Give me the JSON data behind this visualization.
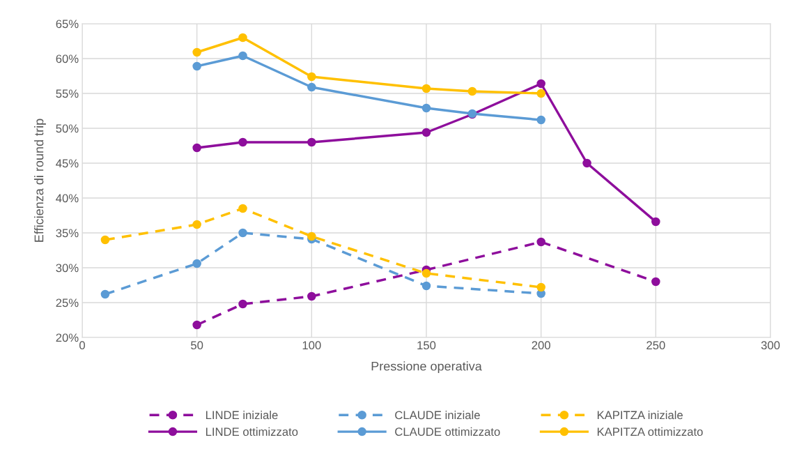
{
  "chart_data": {
    "type": "line",
    "xlabel": "Pressione operativa",
    "ylabel": "Efficienza di round trip",
    "xlim": [
      0,
      300
    ],
    "xticks": [
      0,
      50,
      100,
      150,
      200,
      250,
      300
    ],
    "ylim": [
      20,
      65
    ],
    "yticks": [
      {
        "value": 20,
        "label": "20%"
      },
      {
        "value": 25,
        "label": "25%"
      },
      {
        "value": 30,
        "label": "30%"
      },
      {
        "value": 35,
        "label": "35%"
      },
      {
        "value": 40,
        "label": "40%"
      },
      {
        "value": 45,
        "label": "45%"
      },
      {
        "value": 50,
        "label": "50%"
      },
      {
        "value": 55,
        "label": "55%"
      },
      {
        "value": 60,
        "label": "60%"
      },
      {
        "value": 65,
        "label": "65%"
      }
    ],
    "grid": true,
    "legend": "bottom",
    "marker": "circle",
    "series": [
      {
        "name": "LINDE iniziale",
        "color": "#8e0e9c",
        "line_style": "dashed",
        "x": [
          50,
          70,
          100,
          150,
          200,
          250
        ],
        "values": [
          21.8,
          24.8,
          25.9,
          29.7,
          33.7,
          28.0
        ]
      },
      {
        "name": "CLAUDE iniziale",
        "color": "#5b9bd5",
        "line_style": "dashed",
        "x": [
          10,
          50,
          70,
          100,
          150,
          200
        ],
        "values": [
          26.2,
          30.6,
          35.0,
          34.1,
          27.4,
          26.3
        ]
      },
      {
        "name": "KAPITZA iniziale",
        "color": "#ffc000",
        "line_style": "dashed",
        "x": [
          10,
          50,
          70,
          100,
          150,
          200
        ],
        "values": [
          34.0,
          36.2,
          38.5,
          34.5,
          29.2,
          27.2
        ]
      },
      {
        "name": "LINDE ottimizzato",
        "color": "#8e0e9c",
        "line_style": "solid",
        "x": [
          50,
          70,
          100,
          150,
          170,
          200,
          220,
          250
        ],
        "values": [
          47.2,
          48.0,
          48.0,
          49.4,
          52.0,
          56.4,
          45.0,
          36.6
        ]
      },
      {
        "name": "CLAUDE ottimizzato",
        "color": "#5b9bd5",
        "line_style": "solid",
        "x": [
          50,
          70,
          100,
          150,
          170,
          200
        ],
        "values": [
          58.9,
          60.4,
          55.9,
          52.9,
          52.1,
          51.2
        ]
      },
      {
        "name": "KAPITZA ottimizzato",
        "color": "#ffc000",
        "line_style": "solid",
        "x": [
          50,
          70,
          100,
          150,
          170,
          200
        ],
        "values": [
          60.9,
          63.0,
          57.4,
          55.7,
          55.3,
          55.0
        ]
      }
    ]
  }
}
